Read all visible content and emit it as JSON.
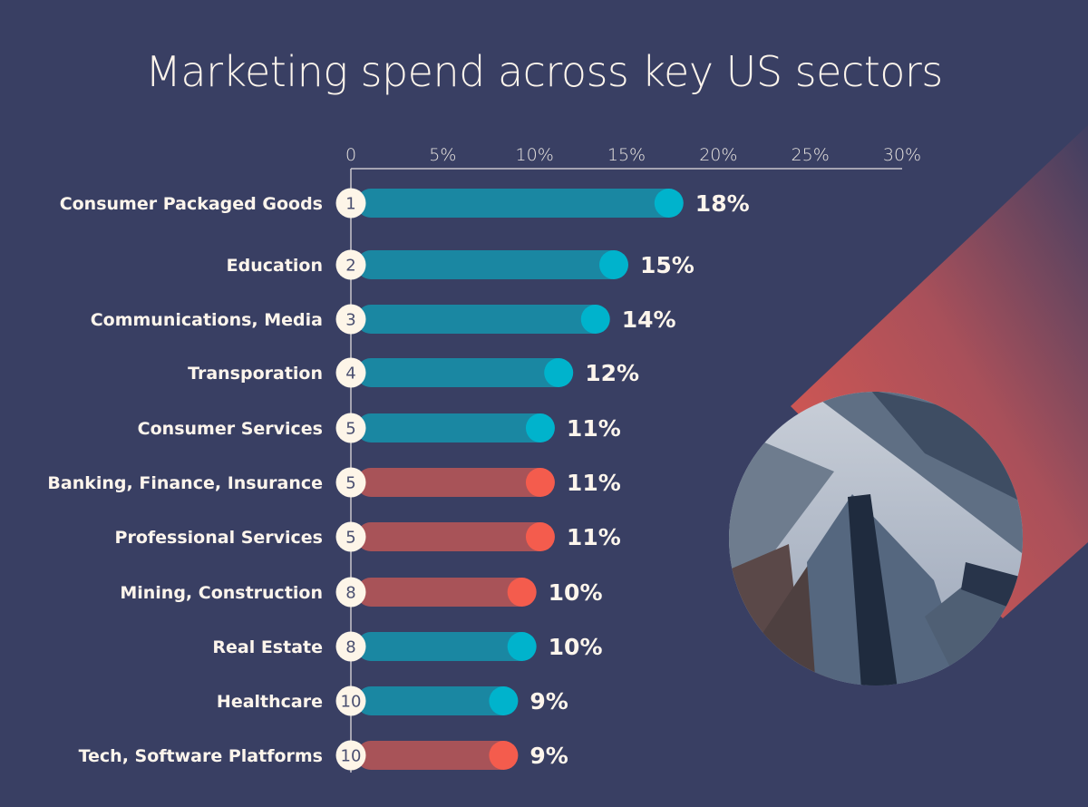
{
  "chart_data": {
    "type": "bar",
    "orientation": "horizontal",
    "title": "Marketing spend across key US sectors",
    "xlim": [
      0,
      30
    ],
    "x_ticks": [
      "0",
      "5%",
      "10%",
      "15%",
      "20%",
      "25%",
      "30%"
    ],
    "x_tick_values": [
      0,
      5,
      10,
      15,
      20,
      25,
      30
    ],
    "grid": false,
    "categories": [
      "Consumer Packaged Goods",
      "Education",
      "Communications, Media",
      "Transporation",
      "Consumer Services",
      "Banking, Finance, Insurance",
      "Professional Services",
      "Mining, Construction",
      "Real Estate",
      "Healthcare",
      "Tech, Software Platforms"
    ],
    "values": [
      18,
      15,
      14,
      12,
      11,
      11,
      11,
      10,
      10,
      9,
      9
    ],
    "value_labels": [
      "18%",
      "15%",
      "14%",
      "12%",
      "11%",
      "11%",
      "11%",
      "10%",
      "10%",
      "9%",
      "9%"
    ],
    "ranks": [
      "1",
      "2",
      "3",
      "4",
      "5",
      "5",
      "5",
      "8",
      "8",
      "10",
      "10"
    ],
    "bar_colors": [
      "teal",
      "teal",
      "teal",
      "teal",
      "teal",
      "red",
      "red",
      "red",
      "teal",
      "teal",
      "red"
    ],
    "colors": {
      "background": "#393f63",
      "teal_bar": "#1a87a2",
      "teal_cap": "#00b3cc",
      "red_bar": "#a85358",
      "red_cap": "#f45c4d",
      "rank_badge": "#fdf5e8"
    }
  },
  "decoration": {
    "image": "skyscrapers-photo"
  }
}
